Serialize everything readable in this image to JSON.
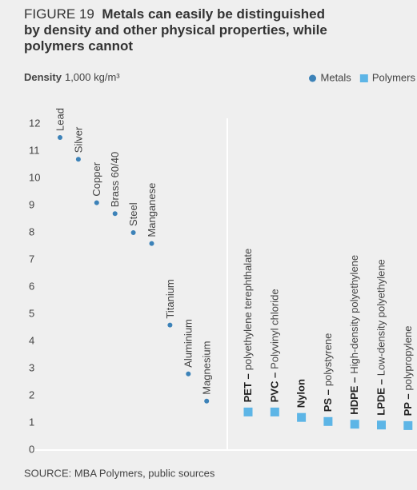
{
  "chart_data": {
    "type": "scatter",
    "figure": "FIGURE 19",
    "title": "Metals can easily be distinguished by density and other physical properties, while polymers cannot",
    "y_label": {
      "bold": "Density",
      "unit": "1,000 kg/m³"
    },
    "ylim": [
      0,
      12
    ],
    "yticks": [
      0,
      1,
      2,
      3,
      4,
      5,
      6,
      7,
      8,
      9,
      10,
      11,
      12
    ],
    "series": [
      {
        "name": "Metals",
        "color": "#3c82b8",
        "marker": "circle",
        "labels": [
          "Lead",
          "Silver",
          "Copper",
          "Brass 60/40",
          "Steel",
          "Manganese",
          "Titanium",
          "Aluminium",
          "Magnesium"
        ],
        "values": [
          11.5,
          10.7,
          9.1,
          8.7,
          8.0,
          7.6,
          4.6,
          2.8,
          1.8
        ]
      },
      {
        "name": "Polymers",
        "color": "#5db5e6",
        "marker": "square",
        "labels": [
          {
            "bold": "PET –",
            "text": "polyethylene terephthalate"
          },
          {
            "bold": "PVC –",
            "text": "Polyvinyl chloride"
          },
          {
            "bold": "Nylon"
          },
          {
            "bold": "PS –",
            "text": "polystyrene"
          },
          {
            "bold": "HDPE –",
            "text": "High-density polyethylene"
          },
          {
            "bold": "LPDE –",
            "text": "Low-density polyethylene"
          },
          {
            "bold": "PP –",
            "text": "polypropylene"
          }
        ],
        "values": [
          1.4,
          1.4,
          1.2,
          1.05,
          0.95,
          0.92,
          0.9
        ]
      }
    ],
    "legend": "top-right",
    "source": "SOURCE: MBA Polymers, public sources"
  }
}
